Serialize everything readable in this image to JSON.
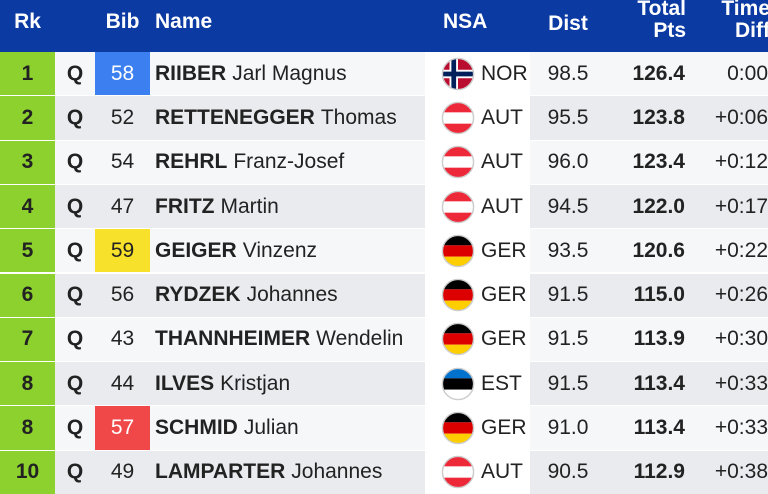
{
  "header": {
    "rank": "Rk",
    "bib": "Bib",
    "name": "Name",
    "nsa": "NSA",
    "dist": "Dist",
    "points": "Total Pts",
    "time": "Time Diff"
  },
  "rows": [
    {
      "rank": "1",
      "q": "Q",
      "bib": "58",
      "bib_color": "#3b7ff0",
      "surname": "RIIBER",
      "given": "Jarl Magnus",
      "nsa": "NOR",
      "dist": "98.5",
      "points": "126.4",
      "time": "0:00"
    },
    {
      "rank": "2",
      "q": "Q",
      "bib": "52",
      "surname": "RETTENEGGER",
      "given": "Thomas",
      "nsa": "AUT",
      "dist": "95.5",
      "points": "123.8",
      "time": "+0:06"
    },
    {
      "rank": "3",
      "q": "Q",
      "bib": "54",
      "surname": "REHRL",
      "given": "Franz-Josef",
      "nsa": "AUT",
      "dist": "96.0",
      "points": "123.4",
      "time": "+0:12"
    },
    {
      "rank": "4",
      "q": "Q",
      "bib": "47",
      "surname": "FRITZ",
      "given": "Martin",
      "nsa": "AUT",
      "dist": "94.5",
      "points": "122.0",
      "time": "+0:17"
    },
    {
      "rank": "5",
      "q": "Q",
      "bib": "59",
      "bib_color": "#f7e12b",
      "surname": "GEIGER",
      "given": "Vinzenz",
      "nsa": "GER",
      "dist": "93.5",
      "points": "120.6",
      "time": "+0:22"
    },
    {
      "rank": "6",
      "q": "Q",
      "bib": "56",
      "surname": "RYDZEK",
      "given": "Johannes",
      "nsa": "GER",
      "dist": "91.5",
      "points": "115.0",
      "time": "+0:26"
    },
    {
      "rank": "7",
      "q": "Q",
      "bib": "43",
      "surname": "THANNHEIMER",
      "given": "Wendelin",
      "nsa": "GER",
      "dist": "91.5",
      "points": "113.9",
      "time": "+0:30"
    },
    {
      "rank": "8",
      "q": "Q",
      "bib": "44",
      "surname": "ILVES",
      "given": "Kristjan",
      "nsa": "EST",
      "dist": "91.5",
      "points": "113.4",
      "time": "+0:33"
    },
    {
      "rank": "8",
      "q": "Q",
      "bib": "57",
      "bib_color": "#f04848",
      "surname": "SCHMID",
      "given": "Julian",
      "nsa": "GER",
      "dist": "91.0",
      "points": "113.4",
      "time": "+0:33"
    },
    {
      "rank": "10",
      "q": "Q",
      "bib": "49",
      "surname": "LAMPARTER",
      "given": "Johannes",
      "nsa": "AUT",
      "dist": "90.5",
      "points": "112.9",
      "time": "+0:38"
    }
  ]
}
